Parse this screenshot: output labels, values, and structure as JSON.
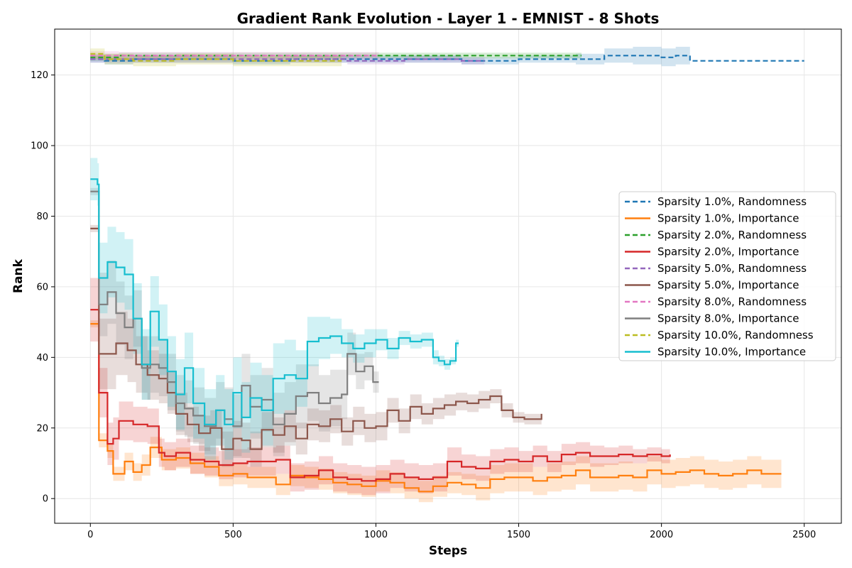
{
  "chart_data": {
    "type": "line",
    "title": "Gradient Rank Evolution - Layer 1 - EMNIST - 8 Shots",
    "xlabel": "Steps",
    "ylabel": "Rank",
    "xlim": [
      -125,
      2630
    ],
    "ylim": [
      -7,
      133
    ],
    "xticks": [
      0,
      500,
      1000,
      1500,
      2000,
      2500
    ],
    "yticks": [
      0,
      20,
      40,
      60,
      80,
      100,
      120
    ],
    "grid": true,
    "legend_position": "center-right",
    "series": [
      {
        "name": "Sparsity 1.0%, Randomness",
        "color": "#1f77b4",
        "dash": true,
        "x": [
          0,
          50,
          150,
          300,
          500,
          700,
          900,
          1100,
          1300,
          1500,
          1700,
          1800,
          1900,
          2000,
          2050,
          2100,
          2500
        ],
        "y": [
          124.5,
          124,
          124.5,
          124.5,
          124,
          124.5,
          124.5,
          124.5,
          124,
          124.5,
          124.5,
          125.5,
          125.5,
          125,
          125.5,
          124,
          124
        ],
        "band": [
          1,
          1,
          1,
          1,
          1,
          1,
          1,
          1,
          1,
          1,
          1.5,
          2,
          2.5,
          2.5,
          2.5,
          0,
          0
        ]
      },
      {
        "name": "Sparsity 1.0%, Importance",
        "color": "#ff7f0e",
        "dash": false,
        "x": [
          0,
          25,
          30,
          60,
          80,
          100,
          120,
          150,
          180,
          210,
          250,
          300,
          350,
          400,
          450,
          500,
          550,
          600,
          650,
          700,
          750,
          800,
          850,
          900,
          950,
          1000,
          1050,
          1100,
          1150,
          1200,
          1250,
          1300,
          1350,
          1400,
          1450,
          1500,
          1550,
          1600,
          1650,
          1700,
          1750,
          1800,
          1850,
          1900,
          1950,
          2000,
          2050,
          2100,
          2150,
          2200,
          2250,
          2300,
          2350,
          2400,
          2420
        ],
        "y": [
          49.5,
          49.5,
          16.5,
          13.5,
          7,
          7,
          10.5,
          7.5,
          9.5,
          14.5,
          11,
          11.5,
          10,
          9,
          6.5,
          7,
          6,
          6,
          4,
          6.5,
          6,
          5.5,
          4.5,
          4,
          3.5,
          5,
          4.5,
          3,
          2,
          3.5,
          4.5,
          4,
          3,
          5.5,
          6,
          6,
          5,
          6,
          6.5,
          8,
          6,
          6,
          6.5,
          6,
          8,
          7,
          7.5,
          8,
          7,
          6.5,
          7,
          8,
          7,
          7,
          7
        ],
        "band": [
          1,
          1,
          2,
          2,
          2,
          2,
          2.5,
          2.5,
          3,
          3,
          3,
          3,
          3,
          3,
          3,
          3,
          3,
          3,
          3,
          3,
          3,
          3,
          3,
          3,
          3,
          3,
          3,
          3,
          3,
          3,
          3,
          3,
          3.5,
          4,
          4,
          4,
          4,
          4,
          4,
          4,
          4,
          4,
          4,
          4,
          4,
          4,
          4,
          4,
          4,
          4,
          4,
          4,
          4,
          4,
          4
        ]
      },
      {
        "name": "Sparsity 2.0%, Randomness",
        "color": "#2ca02c",
        "dash": true,
        "x": [
          0,
          100,
          300,
          500,
          700,
          900,
          1100,
          1300,
          1500,
          1720
        ],
        "y": [
          125,
          125.5,
          125.5,
          125.5,
          125.5,
          125.5,
          125.5,
          125.5,
          125.5,
          125.5
        ],
        "band": [
          1,
          0.8,
          0.8,
          0.8,
          0.8,
          0.8,
          0.8,
          0.8,
          0.8,
          0.8
        ]
      },
      {
        "name": "Sparsity 2.0%, Importance",
        "color": "#d62728",
        "dash": false,
        "x": [
          0,
          25,
          30,
          60,
          80,
          100,
          150,
          200,
          240,
          260,
          300,
          350,
          400,
          450,
          500,
          550,
          600,
          650,
          700,
          750,
          800,
          850,
          900,
          950,
          1000,
          1050,
          1100,
          1150,
          1200,
          1250,
          1300,
          1350,
          1400,
          1450,
          1500,
          1550,
          1600,
          1650,
          1700,
          1750,
          1800,
          1850,
          1900,
          1950,
          2000,
          2030
        ],
        "y": [
          53.5,
          53.5,
          30,
          15.5,
          17,
          22,
          21,
          20.5,
          13,
          12,
          13,
          11,
          10.5,
          9.5,
          10,
          10.5,
          10.5,
          11,
          6,
          6.5,
          8,
          6,
          5.5,
          5,
          5.5,
          7,
          6,
          5.5,
          6,
          10.5,
          9,
          8.5,
          10.5,
          11,
          10.5,
          12,
          10.5,
          12.5,
          13,
          12,
          12,
          12.5,
          12,
          12.5,
          12,
          12.5
        ],
        "band": [
          9,
          9,
          7,
          6,
          6,
          5.5,
          5,
          5,
          4,
          4,
          4,
          4,
          4,
          4,
          4,
          4,
          4,
          4,
          4,
          4,
          4,
          4,
          4,
          4,
          4,
          4,
          4,
          4,
          4,
          4,
          3.5,
          3.5,
          3.5,
          3.5,
          3,
          3,
          3,
          3,
          3,
          3,
          2.5,
          2.5,
          2,
          2,
          2,
          2
        ]
      },
      {
        "name": "Sparsity 5.0%, Randomness",
        "color": "#9467bd",
        "dash": true,
        "x": [
          0,
          100,
          300,
          500,
          700,
          900,
          1100,
          1300,
          1380
        ],
        "y": [
          124.5,
          124.5,
          124.5,
          124.5,
          124.5,
          124,
          124.5,
          124,
          124
        ],
        "band": [
          1,
          1,
          1,
          1,
          1,
          1,
          1,
          1,
          1
        ]
      },
      {
        "name": "Sparsity 5.0%, Importance",
        "color": "#8c564b",
        "dash": false,
        "x": [
          0,
          25,
          30,
          60,
          90,
          130,
          160,
          200,
          240,
          270,
          300,
          340,
          380,
          420,
          460,
          500,
          530,
          560,
          600,
          640,
          680,
          720,
          760,
          800,
          840,
          880,
          920,
          960,
          1000,
          1040,
          1080,
          1120,
          1160,
          1200,
          1240,
          1280,
          1320,
          1360,
          1400,
          1440,
          1480,
          1520,
          1580
        ],
        "y": [
          76.5,
          76.5,
          41,
          41,
          44,
          42,
          38,
          35,
          34,
          30,
          24,
          21,
          18.5,
          20,
          14,
          17,
          16.5,
          14,
          19.5,
          18,
          20.5,
          17,
          21,
          20.5,
          22.5,
          19,
          22,
          20,
          20.5,
          25,
          22,
          26,
          24,
          25.5,
          26.5,
          27.5,
          27,
          28,
          29,
          25,
          23,
          22.5,
          24
        ],
        "band": [
          1,
          1,
          10,
          10,
          9,
          9,
          8,
          7,
          7,
          6,
          6,
          5,
          5,
          5,
          5,
          5,
          5,
          5,
          5,
          5,
          4.5,
          4.5,
          4.5,
          4.5,
          4,
          4,
          4,
          4,
          4,
          3.5,
          3.5,
          3.5,
          3,
          3,
          3,
          2.5,
          2.5,
          2.5,
          2,
          2,
          1.5,
          1.5,
          1
        ]
      },
      {
        "name": "Sparsity 8.0%, Randomness",
        "color": "#e377c2",
        "dash": true,
        "x": [
          0,
          100,
          300,
          500,
          700,
          900,
          1010
        ],
        "y": [
          125.5,
          125.5,
          125.5,
          125.5,
          125.5,
          125.5,
          125.5
        ],
        "band": [
          1.2,
          1,
          1,
          1,
          1,
          1,
          1
        ]
      },
      {
        "name": "Sparsity 8.0%, Importance",
        "color": "#7f7f7f",
        "dash": false,
        "x": [
          0,
          25,
          30,
          60,
          90,
          120,
          150,
          180,
          210,
          240,
          270,
          300,
          330,
          360,
          400,
          440,
          470,
          500,
          530,
          560,
          600,
          640,
          680,
          720,
          760,
          800,
          840,
          880,
          900,
          930,
          960,
          990,
          1010
        ],
        "y": [
          87,
          87,
          55,
          58.5,
          52.5,
          48.5,
          51,
          37,
          38,
          37,
          33,
          27,
          25.5,
          23.5,
          20.5,
          25,
          22.5,
          20.5,
          32,
          26,
          28,
          21,
          24,
          29,
          30,
          27,
          28.5,
          29.5,
          41,
          36,
          37.5,
          33,
          33
        ],
        "band": [
          1,
          1,
          9,
          9,
          9,
          9,
          8,
          9,
          8,
          8,
          8,
          8,
          8,
          8,
          8,
          8,
          9,
          9,
          9,
          9,
          9,
          9,
          9,
          9,
          8,
          8,
          8,
          7,
          6,
          5,
          4,
          3,
          2
        ]
      },
      {
        "name": "Sparsity 10.0%, Randomness",
        "color": "#bcbd22",
        "dash": true,
        "x": [
          0,
          50,
          150,
          300,
          500,
          700,
          880
        ],
        "y": [
          126,
          124.5,
          124,
          124.5,
          124,
          124,
          124
        ],
        "band": [
          1.5,
          1.5,
          1.5,
          1.5,
          1.5,
          1.5,
          1.5
        ]
      },
      {
        "name": "Sparsity 10.0%, Importance",
        "color": "#17becf",
        "dash": false,
        "x": [
          0,
          25,
          30,
          60,
          90,
          120,
          150,
          180,
          210,
          240,
          270,
          300,
          330,
          360,
          400,
          440,
          470,
          500,
          530,
          560,
          600,
          640,
          680,
          720,
          760,
          800,
          840,
          880,
          920,
          960,
          1000,
          1040,
          1080,
          1120,
          1160,
          1200,
          1220,
          1240,
          1260,
          1280,
          1290
        ],
        "y": [
          90.5,
          89,
          62.5,
          67,
          65.5,
          63.5,
          51,
          38,
          53,
          45,
          36,
          29.5,
          37,
          27,
          21,
          25,
          21,
          30,
          23,
          28.5,
          25,
          34,
          35,
          34,
          44.5,
          45.5,
          46,
          44,
          42.5,
          44,
          45,
          42.5,
          45.5,
          44.5,
          45,
          40,
          39,
          38,
          39,
          44,
          44
        ],
        "band": [
          6,
          6,
          10,
          10,
          10,
          10,
          10,
          10,
          10,
          10,
          10,
          10,
          10,
          10,
          10,
          10,
          10,
          10,
          10,
          10,
          10,
          10,
          10,
          8,
          7,
          6,
          5,
          4,
          4,
          4,
          3,
          3,
          2,
          2,
          2,
          2,
          1.5,
          1.5,
          1,
          1,
          1
        ]
      }
    ]
  }
}
